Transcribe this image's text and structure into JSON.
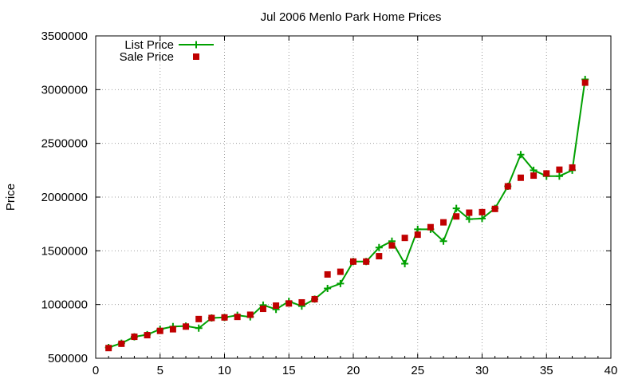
{
  "chart_data": {
    "type": "line",
    "title": "Jul 2006 Menlo Park Home Prices",
    "xlabel": "",
    "ylabel": "Price",
    "xlim": [
      0,
      40
    ],
    "ylim": [
      500000,
      3500000
    ],
    "xticks": [
      0,
      5,
      10,
      15,
      20,
      25,
      30,
      35,
      40
    ],
    "yticks": [
      500000,
      1000000,
      1500000,
      2000000,
      2500000,
      3000000,
      3500000
    ],
    "grid": true,
    "legend_position": "top-left",
    "series": [
      {
        "name": "List Price",
        "style": "line-with-plus-markers",
        "color": "#00a000",
        "points": [
          [
            1,
            600000
          ],
          [
            2,
            640000
          ],
          [
            3,
            700000
          ],
          [
            4,
            720000
          ],
          [
            5,
            770000
          ],
          [
            6,
            795000
          ],
          [
            7,
            800000
          ],
          [
            8,
            780000
          ],
          [
            9,
            875000
          ],
          [
            10,
            880000
          ],
          [
            11,
            900000
          ],
          [
            12,
            885000
          ],
          [
            13,
            995000
          ],
          [
            14,
            955000
          ],
          [
            15,
            1030000
          ],
          [
            16,
            985000
          ],
          [
            17,
            1050000
          ],
          [
            18,
            1150000
          ],
          [
            19,
            1195000
          ],
          [
            20,
            1400000
          ],
          [
            21,
            1400000
          ],
          [
            22,
            1530000
          ],
          [
            23,
            1590000
          ],
          [
            24,
            1380000
          ],
          [
            25,
            1700000
          ],
          [
            26,
            1700000
          ],
          [
            27,
            1590000
          ],
          [
            28,
            1895000
          ],
          [
            29,
            1795000
          ],
          [
            30,
            1800000
          ],
          [
            31,
            1895000
          ],
          [
            32,
            2100000
          ],
          [
            33,
            2395000
          ],
          [
            34,
            2250000
          ],
          [
            35,
            2195000
          ],
          [
            36,
            2195000
          ],
          [
            37,
            2250000
          ],
          [
            38,
            3095000
          ]
        ]
      },
      {
        "name": "Sale Price",
        "style": "square-markers",
        "color": "#c00000",
        "points": [
          [
            1,
            595000
          ],
          [
            2,
            635000
          ],
          [
            3,
            700000
          ],
          [
            4,
            715000
          ],
          [
            5,
            755000
          ],
          [
            6,
            770000
          ],
          [
            7,
            795000
          ],
          [
            8,
            865000
          ],
          [
            9,
            875000
          ],
          [
            10,
            880000
          ],
          [
            11,
            885000
          ],
          [
            12,
            905000
          ],
          [
            13,
            960000
          ],
          [
            14,
            990000
          ],
          [
            15,
            1010000
          ],
          [
            16,
            1020000
          ],
          [
            17,
            1050000
          ],
          [
            18,
            1280000
          ],
          [
            19,
            1305000
          ],
          [
            20,
            1400000
          ],
          [
            21,
            1400000
          ],
          [
            22,
            1450000
          ],
          [
            23,
            1550000
          ],
          [
            24,
            1620000
          ],
          [
            25,
            1650000
          ],
          [
            26,
            1720000
          ],
          [
            27,
            1765000
          ],
          [
            28,
            1820000
          ],
          [
            29,
            1855000
          ],
          [
            30,
            1860000
          ],
          [
            31,
            1890000
          ],
          [
            32,
            2100000
          ],
          [
            33,
            2180000
          ],
          [
            34,
            2200000
          ],
          [
            35,
            2220000
          ],
          [
            36,
            2255000
          ],
          [
            37,
            2275000
          ],
          [
            38,
            3065000
          ]
        ]
      }
    ]
  }
}
